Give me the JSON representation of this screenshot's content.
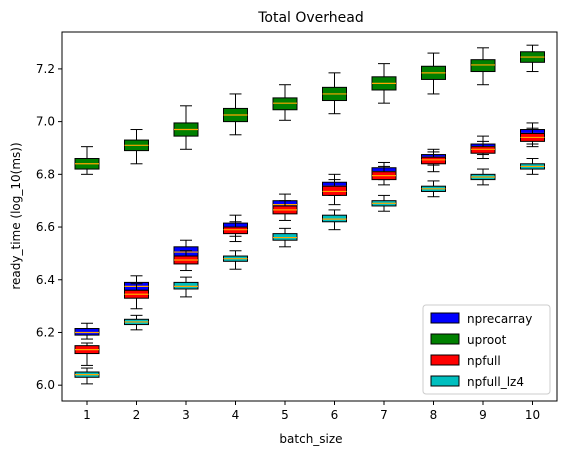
{
  "chart_data": {
    "type": "box",
    "title": "Total Overhead",
    "xlabel": "batch_size",
    "ylabel": "ready_time (log_10(ms))",
    "categories": [
      "1",
      "2",
      "3",
      "4",
      "5",
      "6",
      "7",
      "8",
      "9",
      "10"
    ],
    "ylim": [
      5.94,
      7.34
    ],
    "yticks": [
      "6.0",
      "6.2",
      "6.4",
      "6.6",
      "6.8",
      "7.0",
      "7.2"
    ],
    "grid": false,
    "legend_position": "lower-right",
    "series": [
      {
        "name": "nprecarray",
        "color": "#0000ff",
        "median_color": "#ffa500",
        "boxes": [
          {
            "whislo": 6.175,
            "q1": 6.19,
            "med": 6.2,
            "q3": 6.215,
            "whishi": 6.235
          },
          {
            "whislo": 6.345,
            "q1": 6.36,
            "med": 6.375,
            "q3": 6.39,
            "whishi": 6.415
          },
          {
            "whislo": 6.47,
            "q1": 6.49,
            "med": 6.505,
            "q3": 6.525,
            "whishi": 6.55
          },
          {
            "whislo": 6.565,
            "q1": 6.585,
            "med": 6.6,
            "q3": 6.615,
            "whishi": 6.645
          },
          {
            "whislo": 6.655,
            "q1": 6.67,
            "med": 6.685,
            "q3": 6.7,
            "whishi": 6.725
          },
          {
            "whislo": 6.72,
            "q1": 6.74,
            "med": 6.755,
            "q3": 6.77,
            "whishi": 6.8
          },
          {
            "whislo": 6.78,
            "q1": 6.795,
            "med": 6.81,
            "q3": 6.825,
            "whishi": 6.845
          },
          {
            "whislo": 6.835,
            "q1": 6.85,
            "med": 6.865,
            "q3": 6.875,
            "whishi": 6.895
          },
          {
            "whislo": 6.875,
            "q1": 6.89,
            "med": 6.905,
            "q3": 6.915,
            "whishi": 6.945
          },
          {
            "whislo": 6.915,
            "q1": 6.935,
            "med": 6.955,
            "q3": 6.97,
            "whishi": 6.995
          }
        ]
      },
      {
        "name": "uproot",
        "color": "#008000",
        "median_color": "#ffa500",
        "boxes": [
          {
            "whislo": 6.8,
            "q1": 6.82,
            "med": 6.84,
            "q3": 6.86,
            "whishi": 6.905
          },
          {
            "whislo": 6.84,
            "q1": 6.89,
            "med": 6.91,
            "q3": 6.93,
            "whishi": 6.97
          },
          {
            "whislo": 6.895,
            "q1": 6.945,
            "med": 6.97,
            "q3": 6.995,
            "whishi": 7.06
          },
          {
            "whislo": 6.95,
            "q1": 7.0,
            "med": 7.025,
            "q3": 7.05,
            "whishi": 7.105
          },
          {
            "whislo": 7.005,
            "q1": 7.045,
            "med": 7.07,
            "q3": 7.09,
            "whishi": 7.14
          },
          {
            "whislo": 7.03,
            "q1": 7.08,
            "med": 7.105,
            "q3": 7.13,
            "whishi": 7.185
          },
          {
            "whislo": 7.07,
            "q1": 7.12,
            "med": 7.145,
            "q3": 7.17,
            "whishi": 7.22
          },
          {
            "whislo": 7.105,
            "q1": 7.16,
            "med": 7.185,
            "q3": 7.21,
            "whishi": 7.26
          },
          {
            "whislo": 7.14,
            "q1": 7.19,
            "med": 7.215,
            "q3": 7.235,
            "whishi": 7.28
          },
          {
            "whislo": 7.19,
            "q1": 7.225,
            "med": 7.245,
            "q3": 7.265,
            "whishi": 7.29
          }
        ]
      },
      {
        "name": "npfull",
        "color": "#ff0000",
        "median_color": "#ffa500",
        "boxes": [
          {
            "whislo": 6.075,
            "q1": 6.12,
            "med": 6.135,
            "q3": 6.15,
            "whishi": 6.16
          },
          {
            "whislo": 6.29,
            "q1": 6.33,
            "med": 6.345,
            "q3": 6.36,
            "whishi": 6.385
          },
          {
            "whislo": 6.435,
            "q1": 6.46,
            "med": 6.475,
            "q3": 6.49,
            "whishi": 6.51
          },
          {
            "whislo": 6.545,
            "q1": 6.575,
            "med": 6.59,
            "q3": 6.6,
            "whishi": 6.62
          },
          {
            "whislo": 6.625,
            "q1": 6.65,
            "med": 6.665,
            "q3": 6.68,
            "whishi": 6.7
          },
          {
            "whislo": 6.685,
            "q1": 6.72,
            "med": 6.735,
            "q3": 6.755,
            "whishi": 6.78
          },
          {
            "whislo": 6.76,
            "q1": 6.78,
            "med": 6.795,
            "q3": 6.81,
            "whishi": 6.83
          },
          {
            "whislo": 6.81,
            "q1": 6.84,
            "med": 6.855,
            "q3": 6.865,
            "whishi": 6.885
          },
          {
            "whislo": 6.86,
            "q1": 6.88,
            "med": 6.895,
            "q3": 6.905,
            "whishi": 6.925
          },
          {
            "whislo": 6.905,
            "q1": 6.925,
            "med": 6.94,
            "q3": 6.955,
            "whishi": 6.975
          }
        ]
      },
      {
        "name": "npfull_lz4",
        "color": "#00bfbf",
        "median_color": "#ffa500",
        "boxes": [
          {
            "whislo": 6.005,
            "q1": 6.03,
            "med": 6.04,
            "q3": 6.05,
            "whishi": 6.065
          },
          {
            "whislo": 6.21,
            "q1": 6.23,
            "med": 6.24,
            "q3": 6.25,
            "whishi": 6.265
          },
          {
            "whislo": 6.335,
            "q1": 6.365,
            "med": 6.375,
            "q3": 6.39,
            "whishi": 6.41
          },
          {
            "whislo": 6.44,
            "q1": 6.47,
            "med": 6.48,
            "q3": 6.49,
            "whishi": 6.51
          },
          {
            "whislo": 6.525,
            "q1": 6.55,
            "med": 6.56,
            "q3": 6.575,
            "whishi": 6.595
          },
          {
            "whislo": 6.59,
            "q1": 6.62,
            "med": 6.63,
            "q3": 6.645,
            "whishi": 6.665
          },
          {
            "whislo": 6.66,
            "q1": 6.68,
            "med": 6.69,
            "q3": 6.7,
            "whishi": 6.72
          },
          {
            "whislo": 6.715,
            "q1": 6.735,
            "med": 6.745,
            "q3": 6.755,
            "whishi": 6.775
          },
          {
            "whislo": 6.76,
            "q1": 6.78,
            "med": 6.79,
            "q3": 6.8,
            "whishi": 6.82
          },
          {
            "whislo": 6.8,
            "q1": 6.82,
            "med": 6.83,
            "q3": 6.84,
            "whishi": 6.86
          }
        ]
      }
    ]
  }
}
